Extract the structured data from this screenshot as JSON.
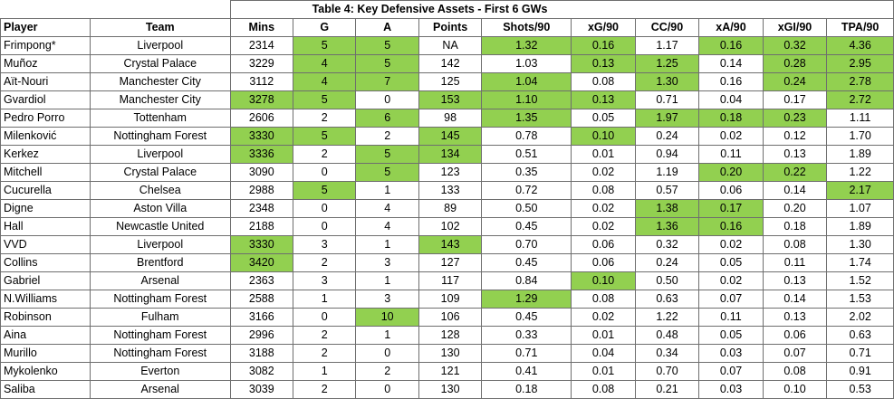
{
  "title": "Table 4: Key Defensive Assets - First 6 GWs",
  "headers": [
    "Player",
    "Team",
    "Mins",
    "G",
    "A",
    "Points",
    "Shots/90",
    "xG/90",
    "CC/90",
    "xA/90",
    "xGI/90",
    "TPA/90"
  ],
  "highlight_color": "#92d050",
  "rows": [
    {
      "cells": [
        "Frimpong*",
        "Liverpool",
        "2314",
        "5",
        "5",
        "NA",
        "1.32",
        "0.16",
        "1.17",
        "0.16",
        "0.32",
        "4.36"
      ],
      "hl": [
        3,
        4,
        6,
        7,
        9,
        10,
        11
      ]
    },
    {
      "cells": [
        "Muñoz",
        "Crystal Palace",
        "3229",
        "4",
        "5",
        "142",
        "1.03",
        "0.13",
        "1.25",
        "0.14",
        "0.28",
        "2.95"
      ],
      "hl": [
        3,
        4,
        7,
        8,
        10,
        11
      ]
    },
    {
      "cells": [
        "Aït-Nouri",
        "Manchester City",
        "3112",
        "4",
        "7",
        "125",
        "1.04",
        "0.08",
        "1.30",
        "0.16",
        "0.24",
        "2.78"
      ],
      "hl": [
        3,
        4,
        6,
        8,
        10,
        11
      ]
    },
    {
      "cells": [
        "Gvardiol",
        "Manchester City",
        "3278",
        "5",
        "0",
        "153",
        "1.10",
        "0.13",
        "0.71",
        "0.04",
        "0.17",
        "2.72"
      ],
      "hl": [
        2,
        3,
        5,
        6,
        7,
        11
      ]
    },
    {
      "cells": [
        "Pedro Porro",
        "Tottenham",
        "2606",
        "2",
        "6",
        "98",
        "1.35",
        "0.05",
        "1.97",
        "0.18",
        "0.23",
        "1.11"
      ],
      "hl": [
        4,
        6,
        8,
        9,
        10
      ]
    },
    {
      "cells": [
        "Milenković",
        "Nottingham Forest",
        "3330",
        "5",
        "2",
        "145",
        "0.78",
        "0.10",
        "0.24",
        "0.02",
        "0.12",
        "1.70"
      ],
      "hl": [
        2,
        3,
        5,
        7
      ]
    },
    {
      "cells": [
        "Kerkez",
        "Liverpool",
        "3336",
        "2",
        "5",
        "134",
        "0.51",
        "0.01",
        "0.94",
        "0.11",
        "0.13",
        "1.89"
      ],
      "hl": [
        2,
        4,
        5
      ]
    },
    {
      "cells": [
        "Mitchell",
        "Crystal Palace",
        "3090",
        "0",
        "5",
        "123",
        "0.35",
        "0.02",
        "1.19",
        "0.20",
        "0.22",
        "1.22"
      ],
      "hl": [
        4,
        9,
        10
      ]
    },
    {
      "cells": [
        "Cucurella",
        "Chelsea",
        "2988",
        "5",
        "1",
        "133",
        "0.72",
        "0.08",
        "0.57",
        "0.06",
        "0.14",
        "2.17"
      ],
      "hl": [
        3,
        11
      ]
    },
    {
      "cells": [
        "Digne",
        "Aston Villa",
        "2348",
        "0",
        "4",
        "89",
        "0.50",
        "0.02",
        "1.38",
        "0.17",
        "0.20",
        "1.07"
      ],
      "hl": [
        8,
        9
      ]
    },
    {
      "cells": [
        "Hall",
        "Newcastle United",
        "2188",
        "0",
        "4",
        "102",
        "0.45",
        "0.02",
        "1.36",
        "0.16",
        "0.18",
        "1.89"
      ],
      "hl": [
        8,
        9
      ]
    },
    {
      "cells": [
        "VVD",
        "Liverpool",
        "3330",
        "3",
        "1",
        "143",
        "0.70",
        "0.06",
        "0.32",
        "0.02",
        "0.08",
        "1.30"
      ],
      "hl": [
        2,
        5
      ]
    },
    {
      "cells": [
        "Collins",
        "Brentford",
        "3420",
        "2",
        "3",
        "127",
        "0.45",
        "0.06",
        "0.24",
        "0.05",
        "0.11",
        "1.74"
      ],
      "hl": [
        2
      ]
    },
    {
      "cells": [
        "Gabriel",
        "Arsenal",
        "2363",
        "3",
        "1",
        "117",
        "0.84",
        "0.10",
        "0.50",
        "0.02",
        "0.13",
        "1.52"
      ],
      "hl": [
        7
      ]
    },
    {
      "cells": [
        "N.Williams",
        "Nottingham Forest",
        "2588",
        "1",
        "3",
        "109",
        "1.29",
        "0.08",
        "0.63",
        "0.07",
        "0.14",
        "1.53"
      ],
      "hl": [
        6
      ]
    },
    {
      "cells": [
        "Robinson",
        "Fulham",
        "3166",
        "0",
        "10",
        "106",
        "0.45",
        "0.02",
        "1.22",
        "0.11",
        "0.13",
        "2.02"
      ],
      "hl": [
        4
      ]
    },
    {
      "cells": [
        "Aina",
        "Nottingham Forest",
        "2996",
        "2",
        "1",
        "128",
        "0.33",
        "0.01",
        "0.48",
        "0.05",
        "0.06",
        "0.63"
      ],
      "hl": []
    },
    {
      "cells": [
        "Murillo",
        "Nottingham Forest",
        "3188",
        "2",
        "0",
        "130",
        "0.71",
        "0.04",
        "0.34",
        "0.03",
        "0.07",
        "0.71"
      ],
      "hl": []
    },
    {
      "cells": [
        "Mykolenko",
        "Everton",
        "3082",
        "1",
        "2",
        "121",
        "0.41",
        "0.01",
        "0.70",
        "0.07",
        "0.08",
        "0.91"
      ],
      "hl": []
    },
    {
      "cells": [
        "Saliba",
        "Arsenal",
        "3039",
        "2",
        "0",
        "130",
        "0.18",
        "0.08",
        "0.21",
        "0.03",
        "0.10",
        "0.53"
      ],
      "hl": []
    }
  ]
}
